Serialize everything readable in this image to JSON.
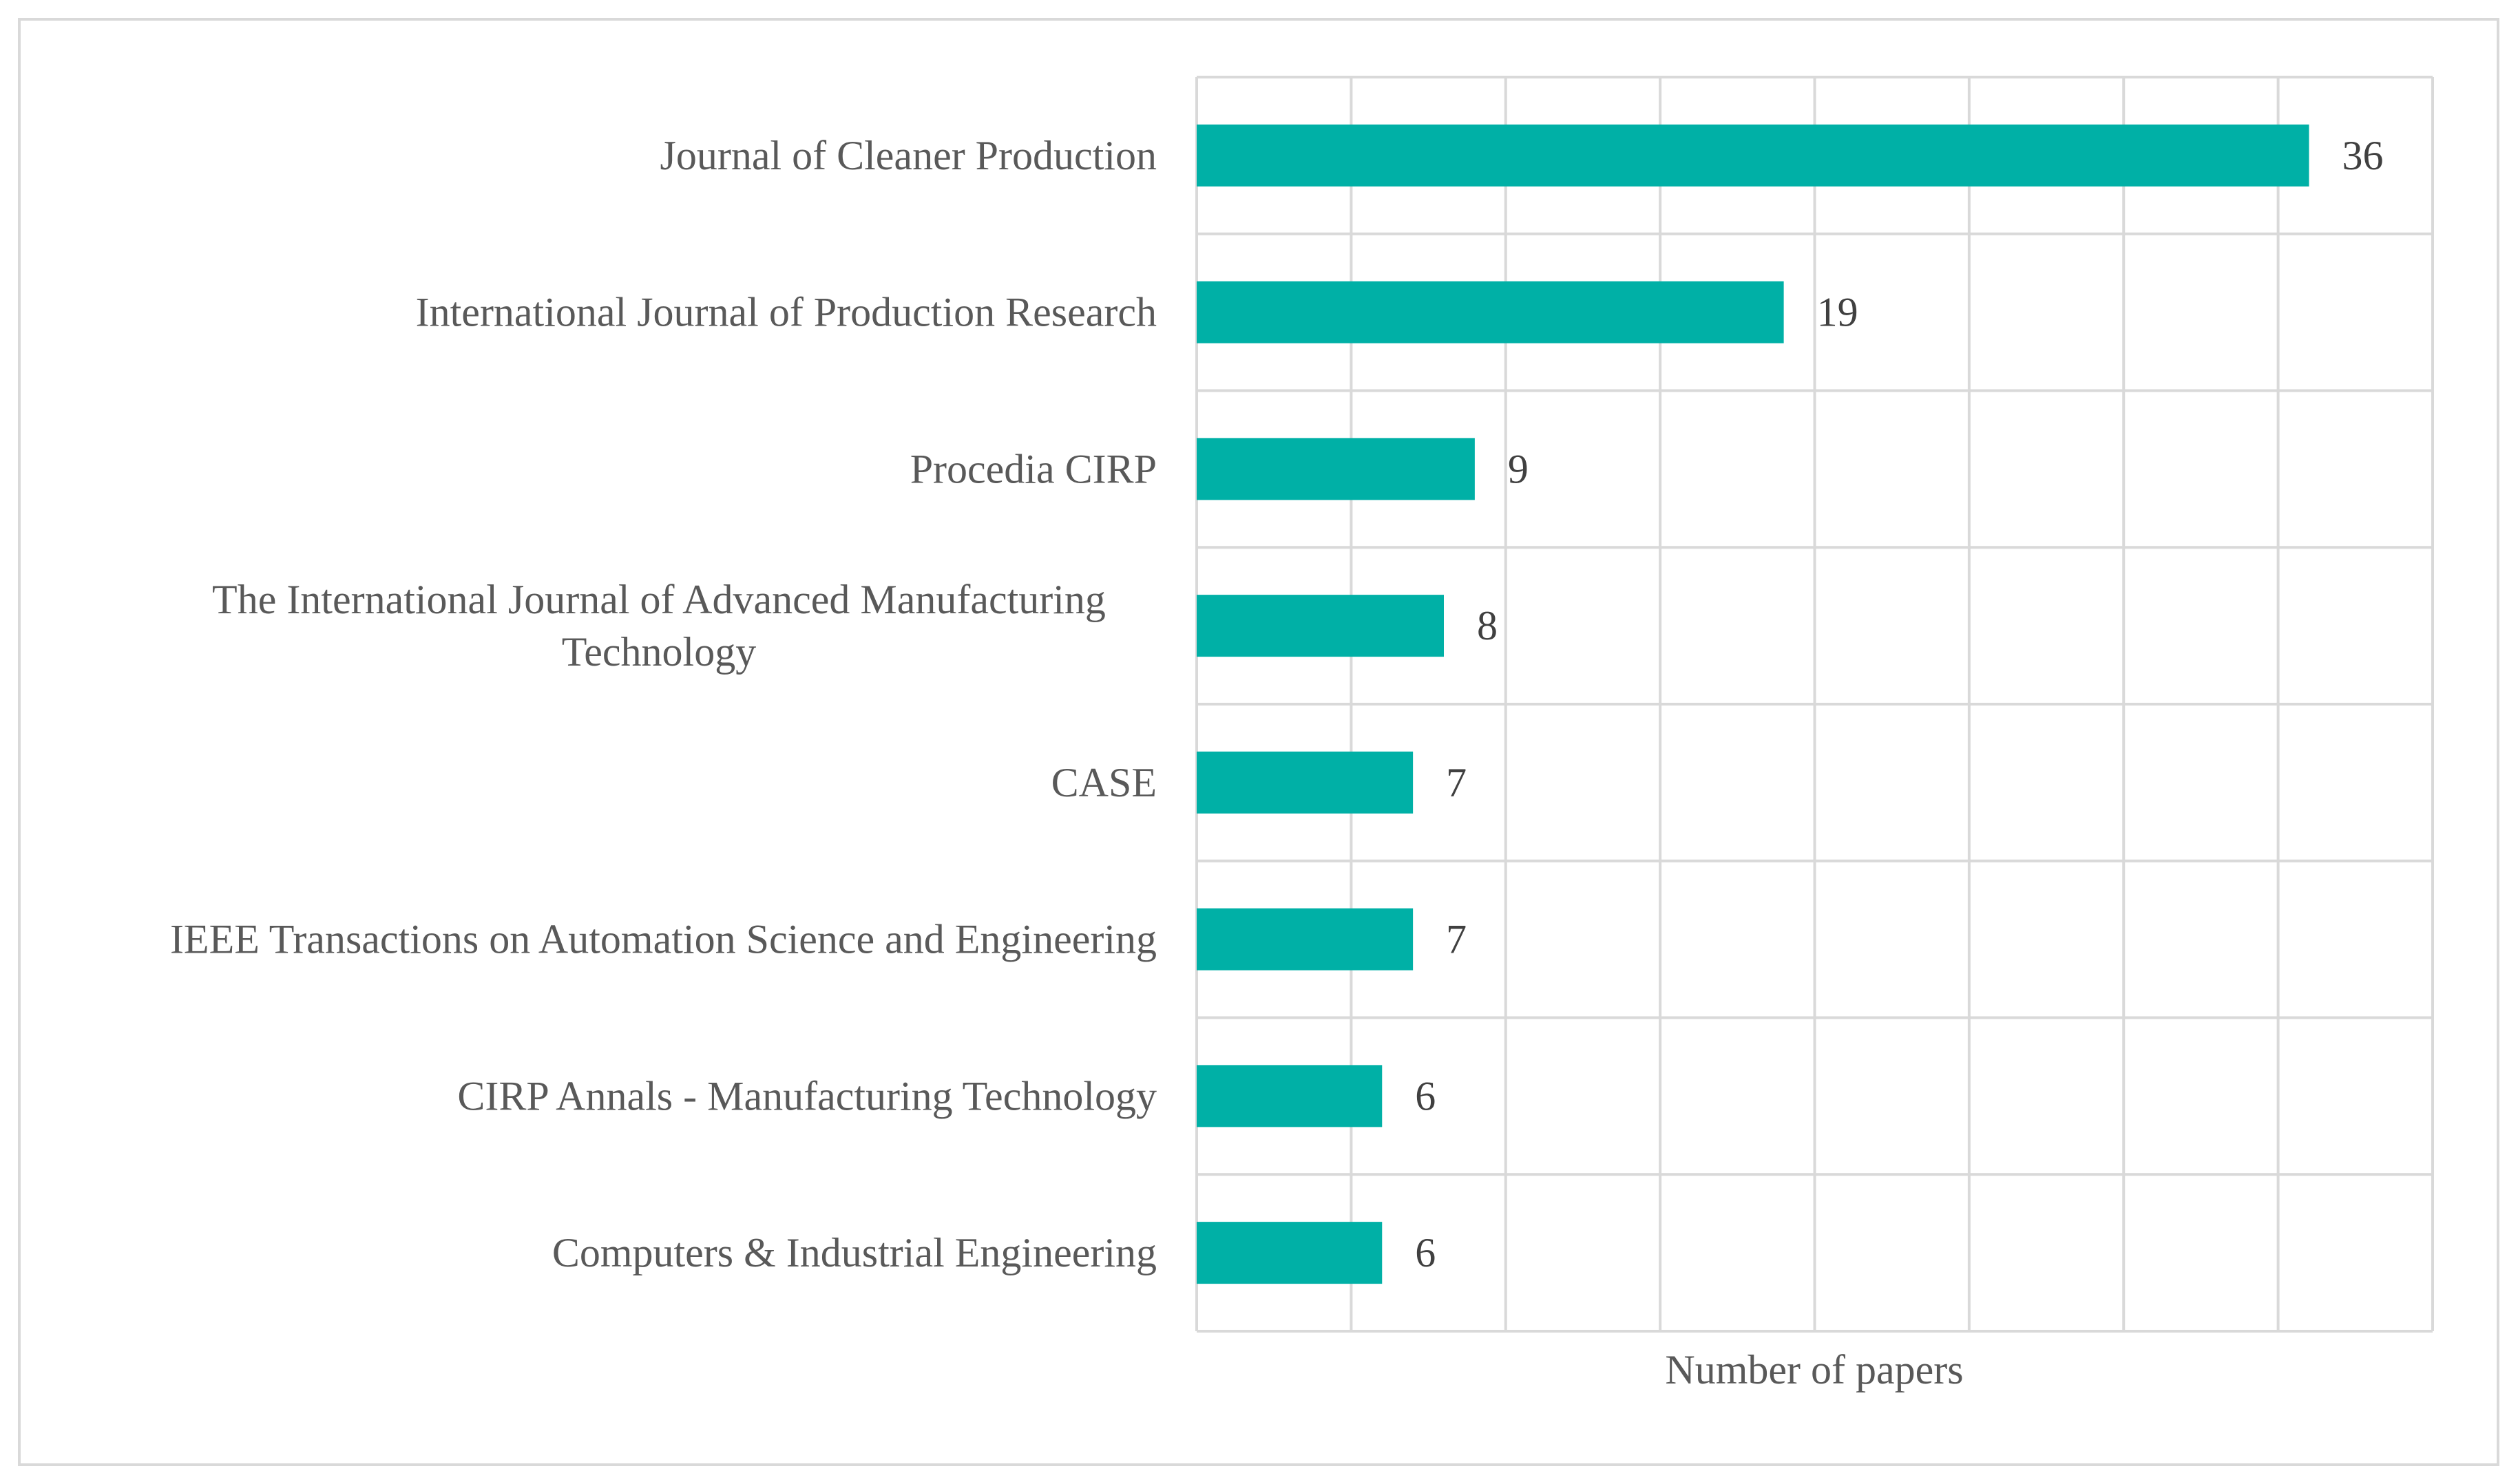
{
  "chart_data": {
    "type": "bar",
    "orientation": "horizontal",
    "categories": [
      "Journal of Cleaner Production",
      "International Journal of Production Research",
      "Procedia CIRP",
      "The International Journal of Advanced Manufacturing Technology",
      "CASE",
      "IEEE Transactions on Automation Science and Engineering",
      "CIRP Annals - Manufacturing Technology",
      "Computers & Industrial Engineering"
    ],
    "category_lines": [
      [
        "Journal of Cleaner Production"
      ],
      [
        "International Journal of Production Research"
      ],
      [
        "Procedia CIRP"
      ],
      [
        "The International Journal of Advanced Manufacturing",
        "Technology"
      ],
      [
        "CASE"
      ],
      [
        "IEEE Transactions on Automation Science and Engineering"
      ],
      [
        "CIRP Annals - Manufacturing Technology"
      ],
      [
        "Computers & Industrial Engineering"
      ]
    ],
    "values": [
      36,
      19,
      9,
      8,
      7,
      7,
      6,
      6
    ],
    "data_labels": [
      "36",
      "19",
      "9",
      "8",
      "7",
      "7",
      "6",
      "6"
    ],
    "title": "",
    "xlabel": "Number of papers",
    "ylabel": "",
    "xlim": [
      0,
      40
    ],
    "x_gridline_step": 5,
    "grid": true,
    "legend": "none",
    "colors": {
      "bar": "#00B0A6",
      "grid": "#D9D9D9",
      "frame": "#D9D9D9"
    }
  }
}
